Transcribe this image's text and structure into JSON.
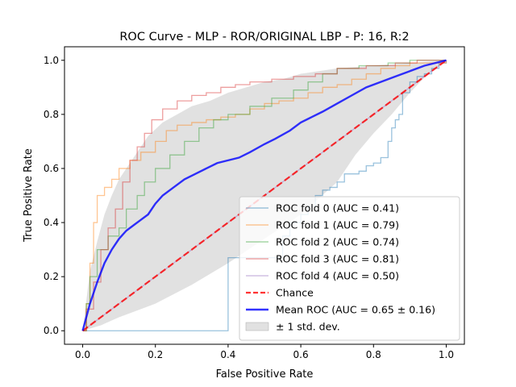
{
  "chart_data": {
    "type": "line",
    "title": "ROC Curve - MLP - ROR/ORIGINAL LBP - P: 16, R:2",
    "xlabel": "False Positive Rate",
    "ylabel": "True Positive Rate",
    "xlim": [
      -0.05,
      1.05
    ],
    "ylim": [
      -0.05,
      1.05
    ],
    "xticks": [
      "0.0",
      "0.2",
      "0.4",
      "0.6",
      "0.8",
      "1.0"
    ],
    "yticks": [
      "0.0",
      "0.2",
      "0.4",
      "0.6",
      "0.8",
      "1.0"
    ],
    "grid": false,
    "legend_position": "lower-right",
    "series": [
      {
        "name": "ROC fold 0 (AUC = 0.41)",
        "color": "#1f77b4",
        "style": "step-line",
        "points": [
          [
            0,
            0
          ],
          [
            0.4,
            0.27
          ],
          [
            0.55,
            0.35
          ],
          [
            0.57,
            0.4
          ],
          [
            0.6,
            0.43
          ],
          [
            0.62,
            0.46
          ],
          [
            0.64,
            0.5
          ],
          [
            0.66,
            0.52
          ],
          [
            0.68,
            0.53
          ],
          [
            0.7,
            0.55
          ],
          [
            0.72,
            0.58
          ],
          [
            0.74,
            0.58
          ],
          [
            0.76,
            0.59
          ],
          [
            0.78,
            0.61
          ],
          [
            0.8,
            0.62
          ],
          [
            0.82,
            0.64
          ],
          [
            0.84,
            0.7
          ],
          [
            0.85,
            0.75
          ],
          [
            0.86,
            0.78
          ],
          [
            0.87,
            0.8
          ],
          [
            0.88,
            0.88
          ],
          [
            0.9,
            0.92
          ],
          [
            0.92,
            0.94
          ],
          [
            0.94,
            0.95
          ],
          [
            0.96,
            0.97
          ],
          [
            0.98,
            0.99
          ],
          [
            1,
            1
          ]
        ]
      },
      {
        "name": "ROC fold 1 (AUC = 0.79)",
        "color": "#ff7f0e",
        "style": "step-line",
        "points": [
          [
            0,
            0
          ],
          [
            0.01,
            0.1
          ],
          [
            0.02,
            0.25
          ],
          [
            0.03,
            0.4
          ],
          [
            0.04,
            0.5
          ],
          [
            0.06,
            0.53
          ],
          [
            0.08,
            0.56
          ],
          [
            0.1,
            0.6
          ],
          [
            0.13,
            0.63
          ],
          [
            0.16,
            0.66
          ],
          [
            0.2,
            0.7
          ],
          [
            0.23,
            0.74
          ],
          [
            0.26,
            0.76
          ],
          [
            0.3,
            0.77
          ],
          [
            0.34,
            0.78
          ],
          [
            0.38,
            0.79
          ],
          [
            0.42,
            0.8
          ],
          [
            0.46,
            0.82
          ],
          [
            0.5,
            0.84
          ],
          [
            0.54,
            0.85
          ],
          [
            0.58,
            0.86
          ],
          [
            0.62,
            0.88
          ],
          [
            0.66,
            0.9
          ],
          [
            0.7,
            0.91
          ],
          [
            0.74,
            0.93
          ],
          [
            0.78,
            0.95
          ],
          [
            0.82,
            0.97
          ],
          [
            0.86,
            0.98
          ],
          [
            0.9,
            0.99
          ],
          [
            1,
            1
          ]
        ]
      },
      {
        "name": "ROC fold 2 (AUC = 0.74)",
        "color": "#2ca02c",
        "style": "step-line",
        "points": [
          [
            0,
            0
          ],
          [
            0.01,
            0.1
          ],
          [
            0.02,
            0.2
          ],
          [
            0.04,
            0.3
          ],
          [
            0.07,
            0.35
          ],
          [
            0.1,
            0.38
          ],
          [
            0.12,
            0.45
          ],
          [
            0.15,
            0.5
          ],
          [
            0.17,
            0.55
          ],
          [
            0.2,
            0.6
          ],
          [
            0.24,
            0.65
          ],
          [
            0.28,
            0.7
          ],
          [
            0.32,
            0.75
          ],
          [
            0.36,
            0.78
          ],
          [
            0.4,
            0.8
          ],
          [
            0.46,
            0.83
          ],
          [
            0.52,
            0.86
          ],
          [
            0.58,
            0.89
          ],
          [
            0.62,
            0.92
          ],
          [
            0.66,
            0.95
          ],
          [
            0.7,
            0.97
          ],
          [
            0.76,
            0.98
          ],
          [
            0.84,
            0.99
          ],
          [
            0.9,
            1
          ],
          [
            1,
            1
          ]
        ]
      },
      {
        "name": "ROC fold 3 (AUC = 0.81)",
        "color": "#d62728",
        "style": "step-line",
        "points": [
          [
            0,
            0
          ],
          [
            0.01,
            0.08
          ],
          [
            0.03,
            0.18
          ],
          [
            0.05,
            0.3
          ],
          [
            0.07,
            0.38
          ],
          [
            0.09,
            0.45
          ],
          [
            0.11,
            0.55
          ],
          [
            0.13,
            0.63
          ],
          [
            0.15,
            0.68
          ],
          [
            0.17,
            0.73
          ],
          [
            0.19,
            0.78
          ],
          [
            0.22,
            0.82
          ],
          [
            0.26,
            0.85
          ],
          [
            0.3,
            0.87
          ],
          [
            0.34,
            0.88
          ],
          [
            0.38,
            0.9
          ],
          [
            0.42,
            0.91
          ],
          [
            0.46,
            0.92
          ],
          [
            0.52,
            0.93
          ],
          [
            0.58,
            0.94
          ],
          [
            0.64,
            0.95
          ],
          [
            0.7,
            0.97
          ],
          [
            0.78,
            0.98
          ],
          [
            0.86,
            0.99
          ],
          [
            0.92,
            1
          ],
          [
            1,
            1
          ]
        ]
      },
      {
        "name": "ROC fold 4 (AUC = 0.50)",
        "color": "#9467bd",
        "style": "line",
        "points": [
          [
            0,
            0
          ],
          [
            0.5,
            0.5
          ],
          [
            1,
            1
          ]
        ]
      },
      {
        "name": "Chance",
        "color": "#ff0000",
        "style": "dashed",
        "points": [
          [
            0,
            0
          ],
          [
            1,
            1
          ]
        ]
      },
      {
        "name": "Mean ROC (AUC = 0.65 ± 0.16)",
        "color": "#0000ff",
        "style": "bold-line",
        "points": [
          [
            0,
            0
          ],
          [
            0.02,
            0.1
          ],
          [
            0.04,
            0.18
          ],
          [
            0.06,
            0.25
          ],
          [
            0.08,
            0.3
          ],
          [
            0.1,
            0.34
          ],
          [
            0.12,
            0.37
          ],
          [
            0.14,
            0.39
          ],
          [
            0.16,
            0.41
          ],
          [
            0.18,
            0.43
          ],
          [
            0.2,
            0.47
          ],
          [
            0.22,
            0.5
          ],
          [
            0.25,
            0.53
          ],
          [
            0.28,
            0.56
          ],
          [
            0.31,
            0.58
          ],
          [
            0.34,
            0.6
          ],
          [
            0.37,
            0.62
          ],
          [
            0.4,
            0.63
          ],
          [
            0.43,
            0.64
          ],
          [
            0.46,
            0.66
          ],
          [
            0.5,
            0.69
          ],
          [
            0.53,
            0.71
          ],
          [
            0.57,
            0.74
          ],
          [
            0.6,
            0.77
          ],
          [
            0.63,
            0.79
          ],
          [
            0.66,
            0.81
          ],
          [
            0.7,
            0.84
          ],
          [
            0.74,
            0.87
          ],
          [
            0.78,
            0.9
          ],
          [
            0.82,
            0.92
          ],
          [
            0.86,
            0.94
          ],
          [
            0.9,
            0.96
          ],
          [
            0.94,
            0.98
          ],
          [
            0.97,
            0.99
          ],
          [
            1,
            1
          ]
        ]
      }
    ],
    "std_band": {
      "name": "± 1 std. dev.",
      "color": "#bdbdbd",
      "upper": [
        [
          0,
          0
        ],
        [
          0.02,
          0.22
        ],
        [
          0.04,
          0.33
        ],
        [
          0.06,
          0.43
        ],
        [
          0.08,
          0.5
        ],
        [
          0.1,
          0.56
        ],
        [
          0.12,
          0.6
        ],
        [
          0.15,
          0.66
        ],
        [
          0.18,
          0.72
        ],
        [
          0.22,
          0.77
        ],
        [
          0.26,
          0.8
        ],
        [
          0.3,
          0.83
        ],
        [
          0.35,
          0.85
        ],
        [
          0.4,
          0.88
        ],
        [
          0.45,
          0.9
        ],
        [
          0.5,
          0.92
        ],
        [
          0.55,
          0.93
        ],
        [
          0.6,
          0.95
        ],
        [
          0.7,
          0.97
        ],
        [
          0.8,
          0.98
        ],
        [
          0.9,
          0.99
        ],
        [
          1,
          1
        ]
      ],
      "lower": [
        [
          0,
          0
        ],
        [
          0.05,
          0.02
        ],
        [
          0.1,
          0.05
        ],
        [
          0.2,
          0.1
        ],
        [
          0.3,
          0.17
        ],
        [
          0.4,
          0.25
        ],
        [
          0.5,
          0.34
        ],
        [
          0.6,
          0.43
        ],
        [
          0.7,
          0.55
        ],
        [
          0.75,
          0.65
        ],
        [
          0.8,
          0.73
        ],
        [
          0.85,
          0.8
        ],
        [
          0.9,
          0.88
        ],
        [
          0.95,
          0.95
        ],
        [
          1,
          1
        ]
      ]
    }
  }
}
